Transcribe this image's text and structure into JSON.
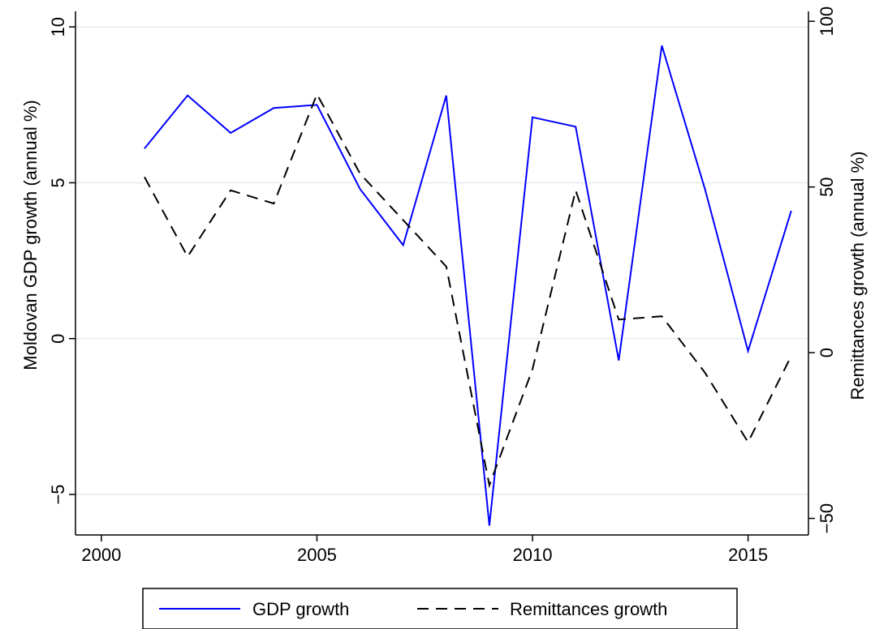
{
  "chart_data": {
    "type": "line",
    "x": [
      2001,
      2002,
      2003,
      2004,
      2005,
      2006,
      2007,
      2008,
      2009,
      2010,
      2011,
      2012,
      2013,
      2014,
      2015,
      2016
    ],
    "series": [
      {
        "name": "GDP growth",
        "axis": "left",
        "color": "#0000ff",
        "style": "solid",
        "values": [
          6.1,
          7.8,
          6.6,
          7.4,
          7.5,
          4.8,
          3.0,
          7.8,
          -6.0,
          7.1,
          6.8,
          -0.7,
          9.4,
          4.8,
          -0.4,
          4.1
        ]
      },
      {
        "name": "Remittances growth",
        "axis": "right",
        "color": "#000000",
        "style": "dashed",
        "values": [
          53,
          29,
          49,
          45,
          78,
          54,
          40,
          26,
          -40,
          -5,
          49,
          10,
          11,
          -6,
          -27,
          -1
        ]
      }
    ],
    "xlabel": "",
    "ylabel_left": "Moldovan GDP growth (annual %)",
    "ylabel_right": "Remittances growth (annual %)",
    "xlim": [
      1999.4,
      2016.4
    ],
    "ylim_left": [
      -6.3,
      10.5
    ],
    "ylim_right": [
      -55,
      103
    ],
    "x_ticks": [
      2000,
      2005,
      2010,
      2015
    ],
    "y_ticks_left": [
      -5,
      0,
      5,
      10
    ],
    "y_ticks_right": [
      -50,
      0,
      50,
      100
    ],
    "y_tick_labels_left": [
      "−5",
      "0",
      "5",
      "10"
    ],
    "y_tick_labels_right": [
      "−50",
      "0",
      "50",
      "100"
    ],
    "grid": "horizontal, left axis ticks",
    "legend_position": "bottom-center"
  }
}
